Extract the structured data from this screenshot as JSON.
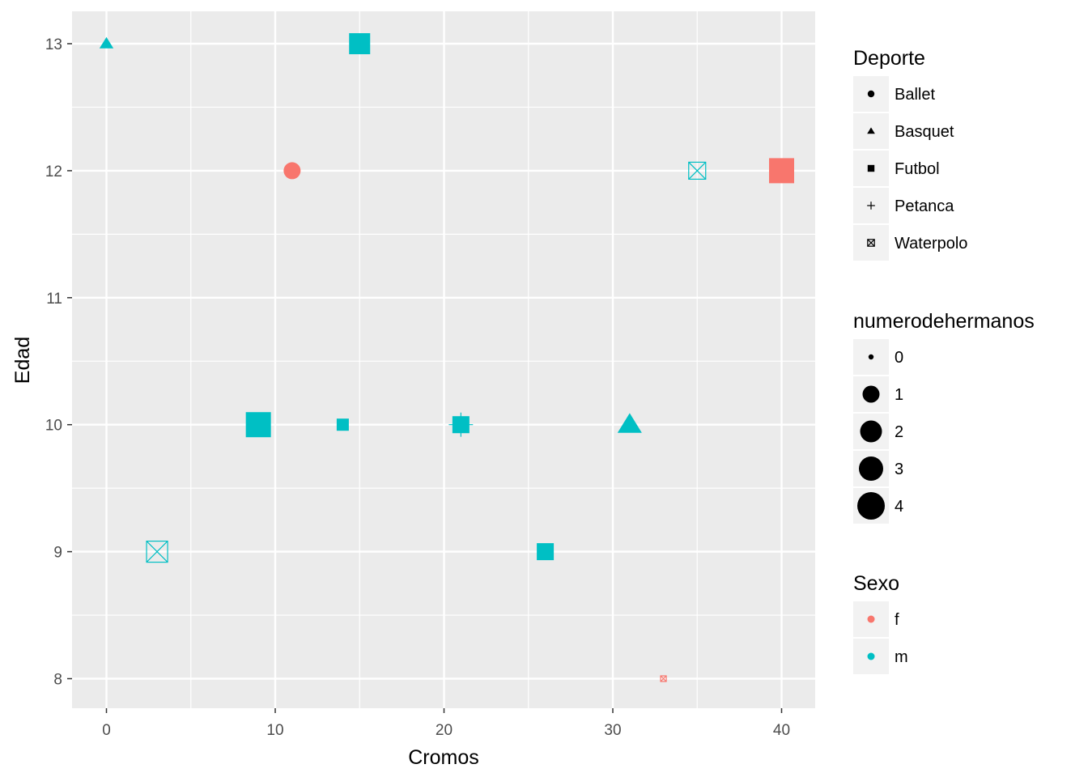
{
  "chart_data": {
    "type": "scatter",
    "title": "",
    "xlabel": "Cromos",
    "ylabel": "Edad",
    "xlim": [
      -2,
      42
    ],
    "ylim": [
      7.78,
      13.22
    ],
    "x_ticks": [
      0,
      10,
      20,
      30,
      40
    ],
    "y_ticks": [
      8,
      9,
      10,
      11,
      12,
      13
    ],
    "grid": true,
    "legend_placement": "right",
    "colors": {
      "f": "#F8766D",
      "m": "#00BFC4",
      "panel": "#EBEBEB",
      "grid": "#FFFFFF"
    },
    "points": [
      {
        "x": 0,
        "y": 13,
        "deporte": "Basquet",
        "sexo": "m",
        "hermanos": 1
      },
      {
        "x": 15,
        "y": 13,
        "deporte": "Futbol",
        "sexo": "m",
        "hermanos": 3
      },
      {
        "x": 11,
        "y": 12,
        "deporte": "Ballet",
        "sexo": "f",
        "hermanos": 2
      },
      {
        "x": 35,
        "y": 12,
        "deporte": "Waterpolo",
        "sexo": "m",
        "hermanos": 2
      },
      {
        "x": 40,
        "y": 12,
        "deporte": "Futbol",
        "sexo": "f",
        "hermanos": 4
      },
      {
        "x": 9,
        "y": 10,
        "deporte": "Futbol",
        "sexo": "m",
        "hermanos": 4
      },
      {
        "x": 14,
        "y": 10,
        "deporte": "Futbol",
        "sexo": "m",
        "hermanos": 1
      },
      {
        "x": 21,
        "y": 10,
        "deporte": "Futbol",
        "sexo": "m",
        "hermanos": 2
      },
      {
        "x": 21,
        "y": 10,
        "deporte": "Petanca",
        "sexo": "m",
        "hermanos": 3
      },
      {
        "x": 31,
        "y": 10,
        "deporte": "Basquet",
        "sexo": "m",
        "hermanos": 3
      },
      {
        "x": 3,
        "y": 9,
        "deporte": "Waterpolo",
        "sexo": "m",
        "hermanos": 3
      },
      {
        "x": 26,
        "y": 9,
        "deporte": "Futbol",
        "sexo": "m",
        "hermanos": 2
      },
      {
        "x": 33,
        "y": 8,
        "deporte": "Waterpolo",
        "sexo": "f",
        "hermanos": 0
      }
    ],
    "legends": [
      {
        "title": "Deporte",
        "kind": "shape",
        "entries": [
          "Ballet",
          "Basquet",
          "Futbol",
          "Petanca",
          "Waterpolo"
        ]
      },
      {
        "title": "numerodehermanos",
        "kind": "size",
        "entries": [
          "0",
          "1",
          "2",
          "3",
          "4"
        ]
      },
      {
        "title": "Sexo",
        "kind": "color",
        "entries": [
          "f",
          "m"
        ]
      }
    ]
  }
}
